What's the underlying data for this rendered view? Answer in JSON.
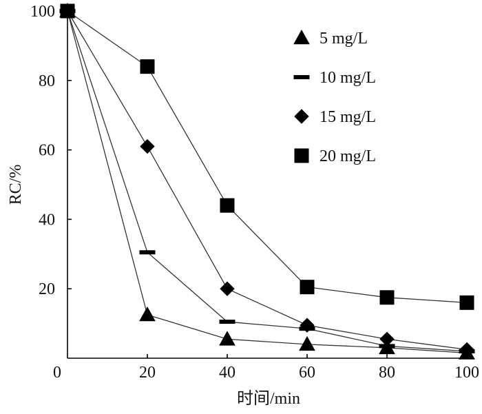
{
  "chart_data": {
    "type": "line",
    "xlabel": "时间/min",
    "ylabel": "RC/%",
    "xlim": [
      0,
      100
    ],
    "ylim": [
      0,
      100
    ],
    "x_ticks": [
      0,
      20,
      40,
      60,
      80,
      100
    ],
    "y_ticks": [
      20,
      40,
      60,
      80,
      100
    ],
    "legend_position": "top-right",
    "series": [
      {
        "name": "5 mg/L",
        "marker": "triangle",
        "x": [
          0,
          20,
          40,
          60,
          80,
          100
        ],
        "y": [
          100,
          12.5,
          5.5,
          4,
          3,
          1.5
        ]
      },
      {
        "name": "10 mg/L",
        "marker": "dash",
        "x": [
          0,
          20,
          40,
          60,
          80,
          100
        ],
        "y": [
          100,
          30.5,
          10.5,
          8.5,
          3.5,
          2
        ]
      },
      {
        "name": "15 mg/L",
        "marker": "diamond",
        "x": [
          0,
          20,
          40,
          60,
          80,
          100
        ],
        "y": [
          100,
          61,
          20,
          9.5,
          5.5,
          2.5
        ]
      },
      {
        "name": "20 mg/L",
        "marker": "square",
        "x": [
          0,
          20,
          40,
          60,
          80,
          100
        ],
        "y": [
          100,
          84,
          44,
          20.5,
          17.5,
          16
        ]
      }
    ]
  }
}
